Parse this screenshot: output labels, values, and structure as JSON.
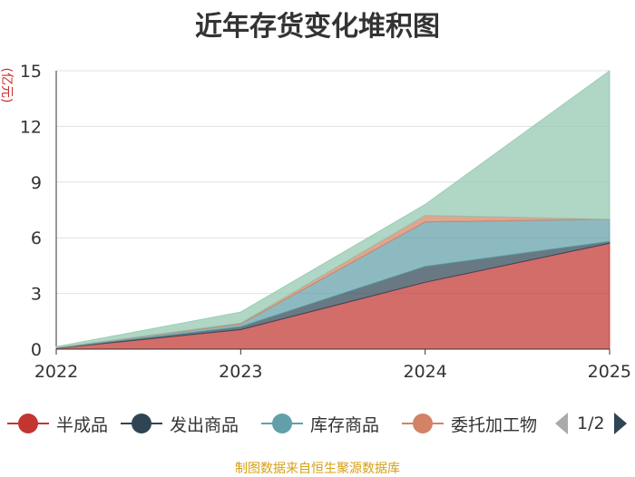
{
  "title": "近年存货变化堆积图",
  "unit": "(亿元)",
  "source": "制图数据来自恒生聚源数据库",
  "pager": {
    "text": "1/2"
  },
  "legend": [
    {
      "name": "半成品",
      "color": "#c23531"
    },
    {
      "name": "发出商品",
      "color": "#2f4554"
    },
    {
      "name": "库存商品",
      "color": "#61a0a8"
    },
    {
      "name": "委托加工物",
      "color": "#d48265"
    }
  ],
  "chart_data": {
    "type": "area",
    "stacked": true,
    "title": "近年存货变化堆积图",
    "ylabel": "(亿元)",
    "x": [
      "2022",
      "2023",
      "2024",
      "2025"
    ],
    "ylim": [
      0,
      15
    ],
    "yticks": [
      0,
      3,
      6,
      9,
      12,
      15
    ],
    "grid": true,
    "legend_position": "bottom",
    "series": [
      {
        "name": "半成品",
        "color": "#c23531",
        "values": [
          0.05,
          1.05,
          3.6,
          5.7
        ]
      },
      {
        "name": "发出商品",
        "color": "#2f4554",
        "values": [
          0.01,
          0.15,
          0.85,
          0.1
        ]
      },
      {
        "name": "库存商品",
        "color": "#61a0a8",
        "values": [
          0.02,
          0.15,
          2.4,
          1.2
        ]
      },
      {
        "name": "委托加工物",
        "color": "#d48265",
        "values": [
          0.0,
          0.05,
          0.35,
          0.0
        ]
      },
      {
        "color": "#91c7ae",
        "values": [
          0.05,
          0.6,
          0.6,
          8.0
        ]
      }
    ]
  }
}
